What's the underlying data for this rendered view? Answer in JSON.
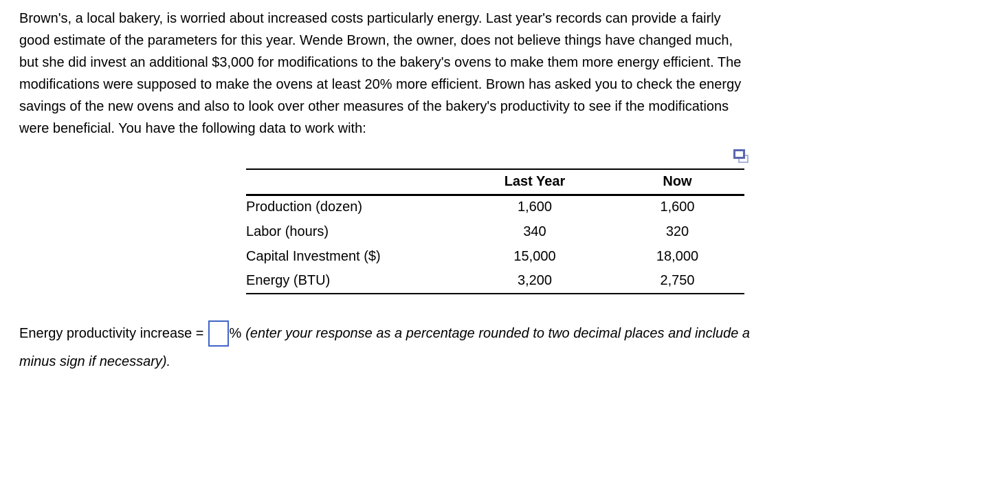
{
  "problem": {
    "lines": [
      "Brown's, a local bakery, is worried about increased costs particularly energy. Last year's records can provide a fairly",
      "good estimate of the parameters for this year. Wende Brown, the owner, does not believe things have changed much,",
      "but she did invest an additional $3,000 for modifications to the bakery's ovens to make them more energy efficient. The",
      "modifications were supposed to make the ovens at least 20% more efficient. Brown has asked you to check the energy",
      "savings of the new ovens and also to look over other measures of the bakery's productivity to see if the modifications",
      "were beneficial. You have the following data to work with:"
    ]
  },
  "table": {
    "columns": [
      "",
      "Last Year",
      "Now"
    ],
    "rows": [
      {
        "label": "Production (dozen)",
        "last_year": "1,600",
        "now": "1,600"
      },
      {
        "label": "Labor (hours)",
        "last_year": "340",
        "now": "320"
      },
      {
        "label": "Capital Investment ($)",
        "last_year": "15,000",
        "now": "18,000"
      },
      {
        "label": "Energy (BTU)",
        "last_year": "3,200",
        "now": "2,750"
      }
    ],
    "copy_icon": "copy-icon"
  },
  "answer": {
    "label": "Energy productivity increase =",
    "input_value": "",
    "percent": "%",
    "note_line1": "(enter your response as a percentage rounded to two decimal places and include a",
    "note_line2": "minus sign if necessary)."
  },
  "colors": {
    "background": "#ffffff",
    "text": "#000000",
    "input_border": "#4064c8",
    "icon_front": "#5a67af",
    "icon_back": "#aab3da"
  }
}
